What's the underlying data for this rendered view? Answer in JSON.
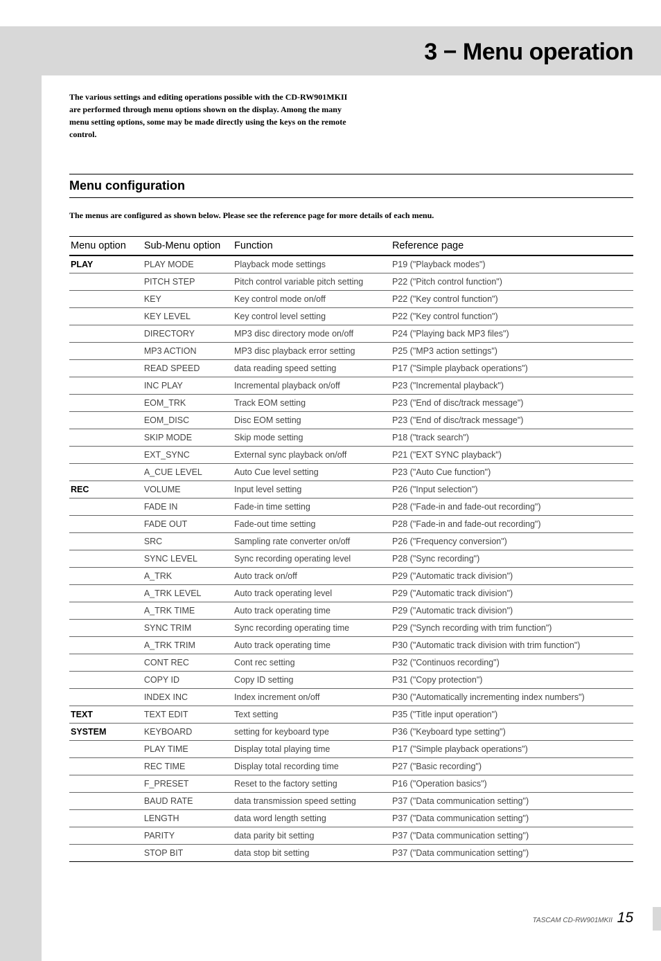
{
  "header": {
    "title": "3 − Menu operation"
  },
  "intro": "The various settings and editing operations possible with the CD-RW901MKII are performed through menu options shown on the display. Among the many menu setting options, some may be made directly using the keys on the remote control.",
  "section": {
    "heading": "Menu configuration",
    "intro": "The menus are configured as shown below. Please see the reference page for more details of each menu."
  },
  "table": {
    "headers": {
      "menu": "Menu option",
      "sub": "Sub-Menu option",
      "func": "Function",
      "ref": "Reference page"
    },
    "groups": [
      {
        "menu": "PLAY",
        "rows": [
          {
            "sub": "PLAY MODE",
            "func": "Playback mode settings",
            "ref": "P19 (\"Playback modes\")"
          },
          {
            "sub": "PITCH STEP",
            "func": "Pitch control variable pitch setting",
            "ref": "P22 (\"Pitch control function\")"
          },
          {
            "sub": "KEY",
            "func": "Key control mode on/off",
            "ref": "P22 (\"Key control function\")"
          },
          {
            "sub": "KEY LEVEL",
            "func": "Key control level setting",
            "ref": "P22 (\"Key control function\")"
          },
          {
            "sub": "DIRECTORY",
            "func": "MP3 disc directory mode on/off",
            "ref": "P24 (\"Playing back MP3 files\")"
          },
          {
            "sub": "MP3 ACTION",
            "func": "MP3 disc playback error setting",
            "ref": "P25 (\"MP3 action settings\")"
          },
          {
            "sub": "READ SPEED",
            "func": "data reading speed setting",
            "ref": "P17 (\"Simple playback operations\")"
          },
          {
            "sub": "INC PLAY",
            "func": "Incremental playback on/off",
            "ref": "P23 (\"Incremental playback\")"
          },
          {
            "sub": "EOM_TRK",
            "func": "Track EOM setting",
            "ref": "P23 (\"End of disc/track message\")"
          },
          {
            "sub": "EOM_DISC",
            "func": "Disc EOM setting",
            "ref": "P23 (\"End of disc/track message\")"
          },
          {
            "sub": "SKIP MODE",
            "func": "Skip mode setting",
            "ref": "P18 (\"track search\")"
          },
          {
            "sub": "EXT_SYNC",
            "func": "External sync playback on/off",
            "ref": "P21 (\"EXT SYNC playback\")"
          },
          {
            "sub": "A_CUE LEVEL",
            "func": "Auto Cue level setting",
            "ref": "P23 (\"Auto Cue function\")"
          }
        ]
      },
      {
        "menu": "REC",
        "rows": [
          {
            "sub": "VOLUME",
            "func": "Input level setting",
            "ref": "P26 (\"Input selection\")"
          },
          {
            "sub": "FADE IN",
            "func": "Fade-in time setting",
            "ref": "P28 (\"Fade-in and fade-out recording\")"
          },
          {
            "sub": "FADE OUT",
            "func": "Fade-out time setting",
            "ref": "P28 (\"Fade-in and fade-out recording\")"
          },
          {
            "sub": "SRC",
            "func": "Sampling rate converter on/off",
            "ref": "P26 (\"Frequency conversion\")"
          },
          {
            "sub": "SYNC LEVEL",
            "func": "Sync recording operating level",
            "ref": "P28 (\"Sync recording\")"
          },
          {
            "sub": "A_TRK",
            "func": "Auto track on/off",
            "ref": "P29 (\"Automatic track division\")"
          },
          {
            "sub": "A_TRK LEVEL",
            "func": "Auto track operating level",
            "ref": "P29 (\"Automatic track division\")"
          },
          {
            "sub": "A_TRK TIME",
            "func": "Auto track operating time",
            "ref": "P29 (\"Automatic track division\")"
          },
          {
            "sub": "SYNC TRIM",
            "func": "Sync recording operating time",
            "ref": "P29 (\"Synch recording with trim function\")"
          },
          {
            "sub": "A_TRK TRIM",
            "func": "Auto track operating time",
            "ref": "P30 (\"Automatic track division with trim function\")"
          },
          {
            "sub": "CONT REC",
            "func": "Cont rec setting",
            "ref": "P32 (\"Continuos recording\")"
          },
          {
            "sub": "COPY ID",
            "func": "Copy ID setting",
            "ref": "P31 (\"Copy protection\")"
          },
          {
            "sub": "INDEX INC",
            "func": "Index increment on/off",
            "ref": "P30 (\"Automatically incrementing index numbers\")"
          }
        ]
      },
      {
        "menu": "TEXT",
        "rows": [
          {
            "sub": "TEXT EDIT",
            "func": "Text setting",
            "ref": "P35 (\"Title input operation\")"
          }
        ]
      },
      {
        "menu": "SYSTEM",
        "rows": [
          {
            "sub": "KEYBOARD",
            "func": "setting for keyboard type",
            "ref": "P36 (\"Keyboard type setting\")"
          },
          {
            "sub": "PLAY TIME",
            "func": "Display total playing time",
            "ref": "P17 (\"Simple playback operations\")"
          },
          {
            "sub": "REC TIME",
            "func": "Display total recording time",
            "ref": "P27 (\"Basic recording\")"
          },
          {
            "sub": "F_PRESET",
            "func": "Reset to the factory setting",
            "ref": "P16 (\"Operation basics\")"
          },
          {
            "sub": "BAUD RATE",
            "func": "data transmission speed setting",
            "ref": "P37 (\"Data communication setting\")"
          },
          {
            "sub": "LENGTH",
            "func": "data word length setting",
            "ref": "P37 (\"Data communication setting\")"
          },
          {
            "sub": "PARITY",
            "func": "data parity bit setting",
            "ref": "P37 (\"Data communication setting\")"
          },
          {
            "sub": "STOP BIT",
            "func": "data stop bit setting",
            "ref": "P37 (\"Data communication setting\")"
          }
        ]
      }
    ]
  },
  "footer": {
    "product": "TASCAM  CD-RW901MKII",
    "page": "15"
  }
}
